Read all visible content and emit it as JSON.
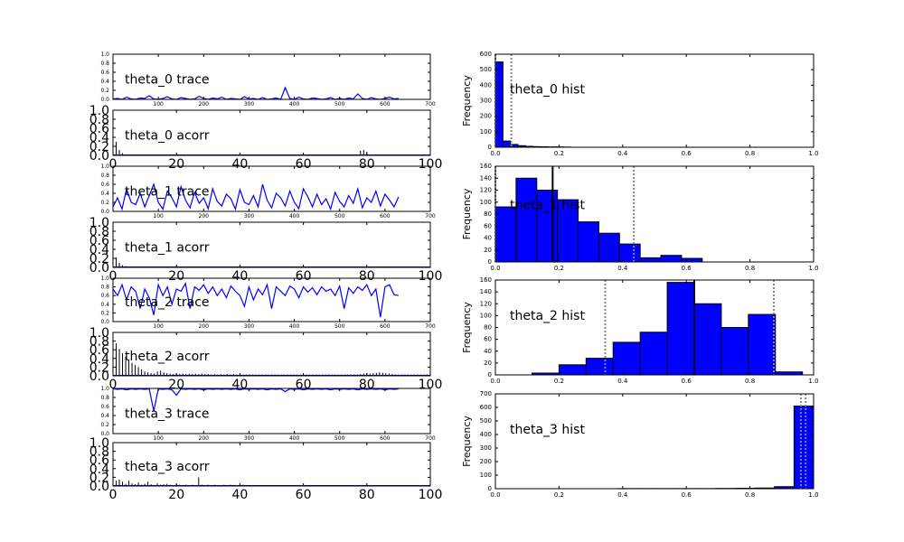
{
  "colors": {
    "series": "#0000ff",
    "interval": "#888888",
    "mean": "#000000",
    "axis": "#000000"
  },
  "chart_data": [
    {
      "type": "line",
      "panel": "theta_0_trace",
      "label": "theta_0 trace",
      "xlim": [
        0,
        700
      ],
      "ylim": [
        0,
        1.0
      ],
      "xticks": [
        100,
        200,
        300,
        400,
        500,
        600,
        700
      ],
      "yticks": [
        0.0,
        0.2,
        0.4,
        0.6,
        0.8,
        1.0
      ],
      "series": [
        {
          "values": [
            0.01,
            0.02,
            0.0,
            0.05,
            0.01,
            0.0,
            0.03,
            0.02,
            0.08,
            0.01,
            0.0,
            0.02,
            0.06,
            0.01,
            0.0,
            0.04,
            0.02,
            0.0,
            0.01,
            0.07,
            0.02,
            0.0,
            0.03,
            0.01,
            0.05,
            0.0,
            0.02,
            0.01,
            0.0,
            0.06,
            0.01,
            0.02,
            0.0,
            0.04,
            0.0,
            0.01,
            0.03,
            0.0,
            0.26,
            0.02,
            0.0,
            0.05,
            0.01,
            0.0,
            0.03,
            0.02,
            0.0,
            0.01,
            0.04,
            0.0,
            0.02,
            0.0,
            0.03,
            0.01,
            0.12,
            0.02,
            0.0,
            0.04,
            0.01,
            0.0,
            0.02,
            0.05,
            0.01,
            0.02
          ]
        }
      ]
    },
    {
      "type": "bar",
      "panel": "theta_0_acorr",
      "label": "theta_0 acorr",
      "xlim": [
        0,
        100
      ],
      "ylim": [
        0,
        1.0
      ],
      "xticks": [
        0,
        20,
        40,
        60,
        80,
        100
      ],
      "yticks": [
        0.0,
        0.2,
        0.4,
        0.6,
        0.8,
        1.0
      ],
      "values": [
        0.55,
        0.3,
        0.12,
        0.05,
        0.02,
        0.01,
        0.01,
        0.0,
        0.01,
        0.0,
        0.0,
        0.01,
        0.0,
        0.02,
        0.0,
        0.0,
        0.01,
        0.0,
        0.0,
        0.0,
        0.0,
        0.01,
        0.0,
        0.0,
        0.0,
        0.0,
        0.0,
        0.0,
        0.0,
        0.0,
        0.0,
        0.0,
        0.0,
        0.0,
        0.0,
        0.0,
        0.0,
        0.0,
        0.0,
        0.0,
        0.0,
        0.0,
        0.0,
        0.0,
        0.0,
        0.0,
        0.0,
        0.0,
        0.0,
        0.0,
        0.0,
        0.0,
        0.0,
        0.0,
        0.0,
        0.0,
        0.0,
        0.0,
        0.0,
        0.0,
        0.0,
        0.0,
        0.0,
        0.0,
        0.0,
        0.0,
        0.0,
        0.0,
        0.0,
        0.0,
        0.0,
        0.0,
        0.0,
        0.0,
        0.0,
        0.0,
        0.0,
        0.0,
        0.1,
        0.12,
        0.08,
        0.02,
        0.0,
        0.0,
        0.0,
        0.0,
        0.0,
        0.0,
        0.0,
        0.0,
        0.0,
        0.0,
        0.0,
        0.0,
        0.0,
        0.0,
        0.0,
        0.0,
        0.0,
        0.0
      ]
    },
    {
      "type": "line",
      "panel": "theta_1_trace",
      "label": "theta_1 trace",
      "xlim": [
        0,
        700
      ],
      "ylim": [
        0,
        1.0
      ],
      "xticks": [
        100,
        200,
        300,
        400,
        500,
        600,
        700
      ],
      "yticks": [
        0.0,
        0.2,
        0.4,
        0.6,
        0.8,
        1.0
      ],
      "series": [
        {
          "values": [
            0.1,
            0.3,
            0.05,
            0.5,
            0.2,
            0.15,
            0.4,
            0.1,
            0.35,
            0.6,
            0.2,
            0.05,
            0.45,
            0.3,
            0.1,
            0.55,
            0.25,
            0.08,
            0.42,
            0.18,
            0.3,
            0.06,
            0.5,
            0.22,
            0.12,
            0.38,
            0.28,
            0.05,
            0.48,
            0.2,
            0.15,
            0.35,
            0.1,
            0.6,
            0.25,
            0.08,
            0.4,
            0.3,
            0.12,
            0.45,
            0.2,
            0.06,
            0.5,
            0.32,
            0.1,
            0.38,
            0.15,
            0.28,
            0.05,
            0.42,
            0.22,
            0.1,
            0.35,
            0.18,
            0.5,
            0.08,
            0.3,
            0.2,
            0.45,
            0.12,
            0.38,
            0.25,
            0.1,
            0.32
          ]
        }
      ]
    },
    {
      "type": "bar",
      "panel": "theta_1_acorr",
      "label": "theta_1 acorr",
      "xlim": [
        0,
        100
      ],
      "ylim": [
        0,
        1.0
      ],
      "xticks": [
        0,
        20,
        40,
        60,
        80,
        100
      ],
      "yticks": [
        0.0,
        0.2,
        0.4,
        0.6,
        0.8,
        1.0
      ],
      "values": [
        0.4,
        0.22,
        0.1,
        0.05,
        0.03,
        0.02,
        0.01,
        0.0,
        0.01,
        0.0,
        0.0,
        0.01,
        0.0,
        0.0,
        0.0,
        0.0,
        0.01,
        0.0,
        0.0,
        0.0,
        0.0,
        0.0,
        0.0,
        0.0,
        0.0,
        0.0,
        0.0,
        0.0,
        0.0,
        0.0,
        0.0,
        0.0,
        0.0,
        0.0,
        0.0,
        0.0,
        0.0,
        0.0,
        0.0,
        0.0,
        0.0,
        0.0,
        0.0,
        0.0,
        0.0,
        0.0,
        0.0,
        0.0,
        0.0,
        0.0,
        0.0,
        0.0,
        0.0,
        0.0,
        0.0,
        0.0,
        0.0,
        0.0,
        0.0,
        0.0,
        0.0,
        0.0,
        0.0,
        0.0,
        0.0,
        0.0,
        0.0,
        0.0,
        0.0,
        0.0,
        0.0,
        0.0,
        0.0,
        0.0,
        0.0,
        0.0,
        0.0,
        0.0,
        0.0,
        0.0,
        0.0,
        0.0,
        0.0,
        0.0,
        0.0,
        0.0,
        0.0,
        0.0,
        0.0,
        0.0,
        0.0,
        0.0,
        0.0,
        0.0,
        0.0,
        0.0,
        0.0,
        0.0,
        0.0,
        0.0
      ]
    },
    {
      "type": "line",
      "panel": "theta_2_trace",
      "label": "theta_2 trace",
      "xlim": [
        0,
        700
      ],
      "ylim": [
        0,
        1.0
      ],
      "xticks": [
        100,
        200,
        300,
        400,
        500,
        600,
        700
      ],
      "yticks": [
        0.0,
        0.2,
        0.4,
        0.6,
        0.8,
        1.0
      ],
      "series": [
        {
          "values": [
            0.75,
            0.6,
            0.85,
            0.5,
            0.8,
            0.7,
            0.3,
            0.75,
            0.55,
            0.15,
            0.85,
            0.6,
            0.8,
            0.4,
            0.75,
            0.7,
            0.88,
            0.3,
            0.8,
            0.72,
            0.85,
            0.65,
            0.8,
            0.6,
            0.75,
            0.55,
            0.82,
            0.7,
            0.6,
            0.35,
            0.8,
            0.5,
            0.75,
            0.62,
            0.85,
            0.3,
            0.8,
            0.7,
            0.6,
            0.82,
            0.75,
            0.55,
            0.8,
            0.68,
            0.78,
            0.62,
            0.8,
            0.7,
            0.75,
            0.6,
            0.82,
            0.3,
            0.78,
            0.65,
            0.8,
            0.72,
            0.85,
            0.6,
            0.75,
            0.1,
            0.8,
            0.85,
            0.62,
            0.6
          ]
        }
      ]
    },
    {
      "type": "bar",
      "panel": "theta_2_acorr",
      "label": "theta_2 acorr",
      "xlim": [
        0,
        100
      ],
      "ylim": [
        0,
        1.0
      ],
      "xticks": [
        0,
        20,
        40,
        60,
        80,
        100
      ],
      "yticks": [
        0.0,
        0.2,
        0.4,
        0.6,
        0.8,
        1.0
      ],
      "values": [
        0.9,
        0.75,
        0.62,
        0.52,
        0.44,
        0.38,
        0.3,
        0.25,
        0.2,
        0.15,
        0.1,
        0.08,
        0.06,
        0.05,
        0.1,
        0.12,
        0.08,
        0.06,
        0.05,
        0.04,
        0.05,
        0.04,
        0.05,
        0.04,
        0.05,
        0.04,
        0.05,
        0.04,
        0.05,
        0.04,
        0.04,
        0.03,
        0.04,
        0.03,
        0.04,
        0.03,
        0.04,
        0.03,
        0.04,
        0.03,
        0.03,
        0.03,
        0.03,
        0.03,
        0.03,
        0.03,
        0.03,
        0.03,
        0.03,
        0.03,
        0.03,
        0.03,
        0.03,
        0.03,
        0.03,
        0.03,
        0.03,
        0.03,
        0.03,
        0.03,
        0.03,
        0.03,
        0.03,
        0.03,
        0.03,
        0.03,
        0.03,
        0.03,
        0.03,
        0.03,
        0.03,
        0.03,
        0.03,
        0.03,
        0.03,
        0.03,
        0.03,
        0.03,
        0.04,
        0.05,
        0.06,
        0.05,
        0.06,
        0.07,
        0.08,
        0.07,
        0.06,
        0.05,
        0.04,
        0.03,
        0.03,
        0.03,
        0.03,
        0.03,
        0.03,
        0.03,
        0.03,
        0.03,
        0.03,
        0.03
      ]
    },
    {
      "type": "line",
      "panel": "theta_3_trace",
      "label": "theta_3 trace",
      "xlim": [
        0,
        700
      ],
      "ylim": [
        0,
        1.0
      ],
      "xticks": [
        100,
        200,
        300,
        400,
        500,
        600,
        700
      ],
      "yticks": [
        0.0,
        0.2,
        0.4,
        0.6,
        0.8,
        1.0
      ],
      "series": [
        {
          "values": [
            0.99,
            0.98,
            0.99,
            0.97,
            0.99,
            0.98,
            0.99,
            0.98,
            0.99,
            0.5,
            0.99,
            0.98,
            0.99,
            0.97,
            0.85,
            0.99,
            0.98,
            0.99,
            0.98,
            0.99,
            0.97,
            0.99,
            0.98,
            0.99,
            0.98,
            0.99,
            0.98,
            0.99,
            0.97,
            0.99,
            0.98,
            0.99,
            0.98,
            0.99,
            0.97,
            0.99,
            0.98,
            0.99,
            0.93,
            0.99,
            0.98,
            0.99,
            0.97,
            0.99,
            0.98,
            0.99,
            0.98,
            0.99,
            0.97,
            0.99,
            0.98,
            0.99,
            0.98,
            0.99,
            0.97,
            0.99,
            0.98,
            0.99,
            0.98,
            0.99,
            0.97,
            0.99,
            0.98,
            0.99
          ]
        }
      ]
    },
    {
      "type": "bar",
      "panel": "theta_3_acorr",
      "label": "theta_3 acorr",
      "xlim": [
        0,
        100
      ],
      "ylim": [
        0,
        1.0
      ],
      "xticks": [
        0,
        20,
        40,
        60,
        80,
        100
      ],
      "yticks": [
        0.0,
        0.2,
        0.4,
        0.6,
        0.8,
        1.0
      ],
      "values": [
        0.18,
        0.12,
        0.15,
        0.1,
        0.05,
        0.12,
        0.06,
        0.04,
        0.08,
        0.03,
        0.05,
        0.1,
        0.04,
        0.02,
        0.06,
        0.03,
        0.04,
        0.05,
        0.03,
        0.02,
        0.04,
        0.03,
        0.02,
        0.03,
        0.02,
        0.03,
        0.02,
        0.2,
        0.03,
        0.02,
        0.03,
        0.02,
        0.03,
        0.02,
        0.02,
        0.03,
        0.02,
        0.03,
        0.02,
        0.02,
        0.02,
        0.03,
        0.02,
        0.02,
        0.02,
        0.02,
        0.02,
        0.02,
        0.02,
        0.02,
        0.02,
        0.02,
        0.02,
        0.02,
        0.02,
        0.02,
        0.02,
        0.02,
        0.02,
        0.02,
        0.02,
        0.02,
        0.02,
        0.02,
        0.02,
        0.02,
        0.02,
        0.02,
        0.02,
        0.02,
        0.02,
        0.02,
        0.02,
        0.02,
        0.02,
        0.02,
        0.02,
        0.02,
        0.02,
        0.02,
        0.02,
        0.02,
        0.02,
        0.02,
        0.02,
        0.02,
        0.02,
        0.02,
        0.02,
        0.02,
        0.02,
        0.02,
        0.02,
        0.02,
        0.02,
        0.02,
        0.02,
        0.02,
        0.02,
        0.02
      ]
    },
    {
      "type": "bar",
      "panel": "theta_0_hist",
      "label": "theta_0 hist",
      "ylabel": "Frequency",
      "xlim": [
        0,
        1.0
      ],
      "ylim": [
        0,
        600
      ],
      "xticks": [
        0.0,
        0.2,
        0.4,
        0.6,
        0.8,
        1.0
      ],
      "yticks": [
        0,
        100,
        200,
        300,
        400,
        500,
        600
      ],
      "bin_edges": [
        0.0,
        0.0237,
        0.0474,
        0.0711,
        0.0948,
        0.1185,
        0.1422,
        0.1659,
        0.1896,
        0.2133,
        0.237
      ],
      "counts": [
        550,
        40,
        18,
        10,
        6,
        4,
        3,
        2,
        2,
        1
      ],
      "mean": null,
      "interval": [
        0.0,
        0.05
      ]
    },
    {
      "type": "bar",
      "panel": "theta_1_hist",
      "label": "theta_1 hist",
      "ylabel": "Frequency",
      "xlim": [
        0,
        1.0
      ],
      "ylim": [
        0,
        160
      ],
      "xticks": [
        0.0,
        0.2,
        0.4,
        0.6,
        0.8,
        1.0
      ],
      "yticks": [
        0,
        20,
        40,
        60,
        80,
        100,
        120,
        140,
        160
      ],
      "bin_edges": [
        0.0,
        0.065,
        0.13,
        0.195,
        0.26,
        0.325,
        0.39,
        0.455,
        0.52,
        0.585,
        0.65
      ],
      "counts": [
        92,
        140,
        120,
        104,
        67,
        48,
        30,
        7,
        11,
        6
      ],
      "mean": 0.18,
      "interval": [
        0.0,
        0.435
      ]
    },
    {
      "type": "bar",
      "panel": "theta_2_hist",
      "label": "theta_2 hist",
      "ylabel": "Frequency",
      "xlim": [
        0,
        1.0
      ],
      "ylim": [
        0,
        160
      ],
      "xticks": [
        0.0,
        0.2,
        0.4,
        0.6,
        0.8,
        1.0
      ],
      "yticks": [
        0,
        20,
        40,
        60,
        80,
        100,
        120,
        140,
        160
      ],
      "bin_edges": [
        0.115,
        0.2,
        0.285,
        0.37,
        0.455,
        0.54,
        0.625,
        0.71,
        0.795,
        0.88,
        0.965
      ],
      "counts": [
        3,
        17,
        28,
        55,
        72,
        156,
        120,
        80,
        102,
        5
      ],
      "mean": 0.625,
      "interval": [
        0.345,
        0.875
      ]
    },
    {
      "type": "bar",
      "panel": "theta_3_hist",
      "label": "theta_3 hist",
      "ylabel": "Frequency",
      "xlim": [
        0,
        1.0
      ],
      "ylim": [
        0,
        700
      ],
      "xticks": [
        0.0,
        0.2,
        0.4,
        0.6,
        0.8,
        1.0
      ],
      "yticks": [
        0,
        100,
        200,
        300,
        400,
        500,
        600,
        700
      ],
      "bin_edges": [
        0.385,
        0.4465,
        0.508,
        0.5695,
        0.631,
        0.6925,
        0.754,
        0.8155,
        0.877,
        0.9385,
        1.0
      ],
      "counts": [
        1,
        1,
        1,
        1,
        1,
        2,
        3,
        5,
        15,
        610
      ],
      "mean": null,
      "interval": [
        0.96,
        0.975
      ]
    }
  ]
}
